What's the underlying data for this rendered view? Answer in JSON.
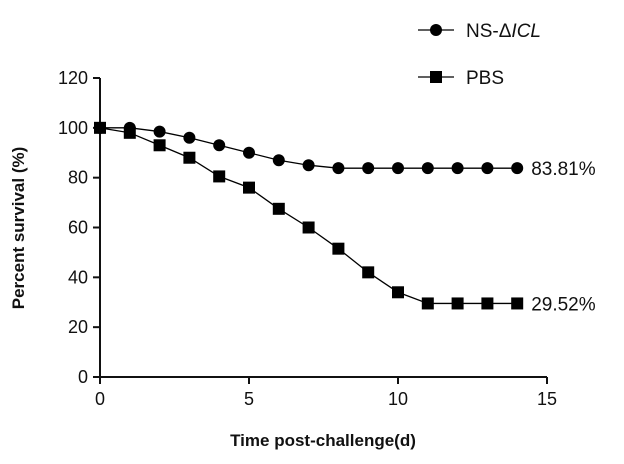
{
  "chart_data": {
    "type": "line",
    "title": "",
    "xlabel": "Time post-challenge(d)",
    "ylabel": "Percent survival (%)",
    "xlim": [
      0,
      15
    ],
    "ylim": [
      0,
      120
    ],
    "xticks": [
      0,
      5,
      10,
      15
    ],
    "yticks": [
      0,
      20,
      40,
      60,
      80,
      100,
      120
    ],
    "grid": false,
    "legend_position": "top-right",
    "series": [
      {
        "name": "NS-ΔICL",
        "name_prefix": "NS-Δ",
        "name_italic": "ICL",
        "marker": "circle",
        "color": "#000000",
        "x": [
          0,
          1,
          2,
          3,
          4,
          5,
          6,
          7,
          8,
          9,
          10,
          11,
          12,
          13,
          14
        ],
        "values": [
          100,
          100,
          98.5,
          96,
          93,
          90,
          87,
          85,
          83.81,
          83.81,
          83.81,
          83.81,
          83.81,
          83.81,
          83.81
        ],
        "end_label": "83.81%"
      },
      {
        "name": "PBS",
        "marker": "square",
        "color": "#000000",
        "x": [
          0,
          1,
          2,
          3,
          4,
          5,
          6,
          7,
          8,
          9,
          10,
          11,
          12,
          13,
          14
        ],
        "values": [
          100,
          98,
          93,
          88,
          80.5,
          76,
          67.5,
          60,
          51.5,
          42,
          34,
          29.52,
          29.52,
          29.52,
          29.52
        ],
        "end_label": "29.52%"
      }
    ]
  }
}
